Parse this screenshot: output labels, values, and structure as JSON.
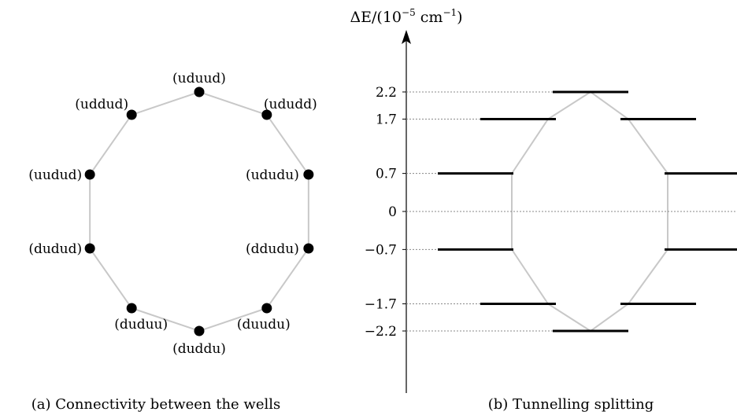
{
  "panel_a": {
    "caption": "(a) Connectivity between the wells",
    "wells": [
      {
        "label": "(uduud)"
      },
      {
        "label": "(ududd)"
      },
      {
        "label": "(ududu)"
      },
      {
        "label": "(ddudu)"
      },
      {
        "label": "(duudu)"
      },
      {
        "label": "(duddu)"
      },
      {
        "label": "(duduu)"
      },
      {
        "label": "(dudud)"
      },
      {
        "label": "(uudud)"
      },
      {
        "label": "(uddud)"
      }
    ],
    "colors": {
      "ring": "#c8c8c8",
      "node": "#000000"
    }
  },
  "panel_b": {
    "caption": "(b) Tunnelling splitting",
    "axis_label_prefix": "ΔE/(10",
    "axis_label_exp": "−5",
    "axis_label_unit": " cm",
    "axis_label_unit_exp": "−1",
    "axis_label_suffix": ")",
    "ticks": [
      "2.2",
      "1.7",
      "0.7",
      "0",
      "−0.7",
      "−1.7",
      "−2.2"
    ],
    "colors": {
      "ring": "#c8c8c8",
      "level": "#000000",
      "guide": "#888888"
    }
  },
  "chart_data": {
    "type": "energy-level diagram",
    "ylabel": "ΔE/(10^-5 cm^-1)",
    "levels": [
      {
        "value": 2.2,
        "count": 1
      },
      {
        "value": 1.7,
        "count": 2
      },
      {
        "value": 0.7,
        "count": 2
      },
      {
        "value": -0.7,
        "count": 2
      },
      {
        "value": -1.7,
        "count": 2
      },
      {
        "value": -2.2,
        "count": 1
      }
    ]
  }
}
